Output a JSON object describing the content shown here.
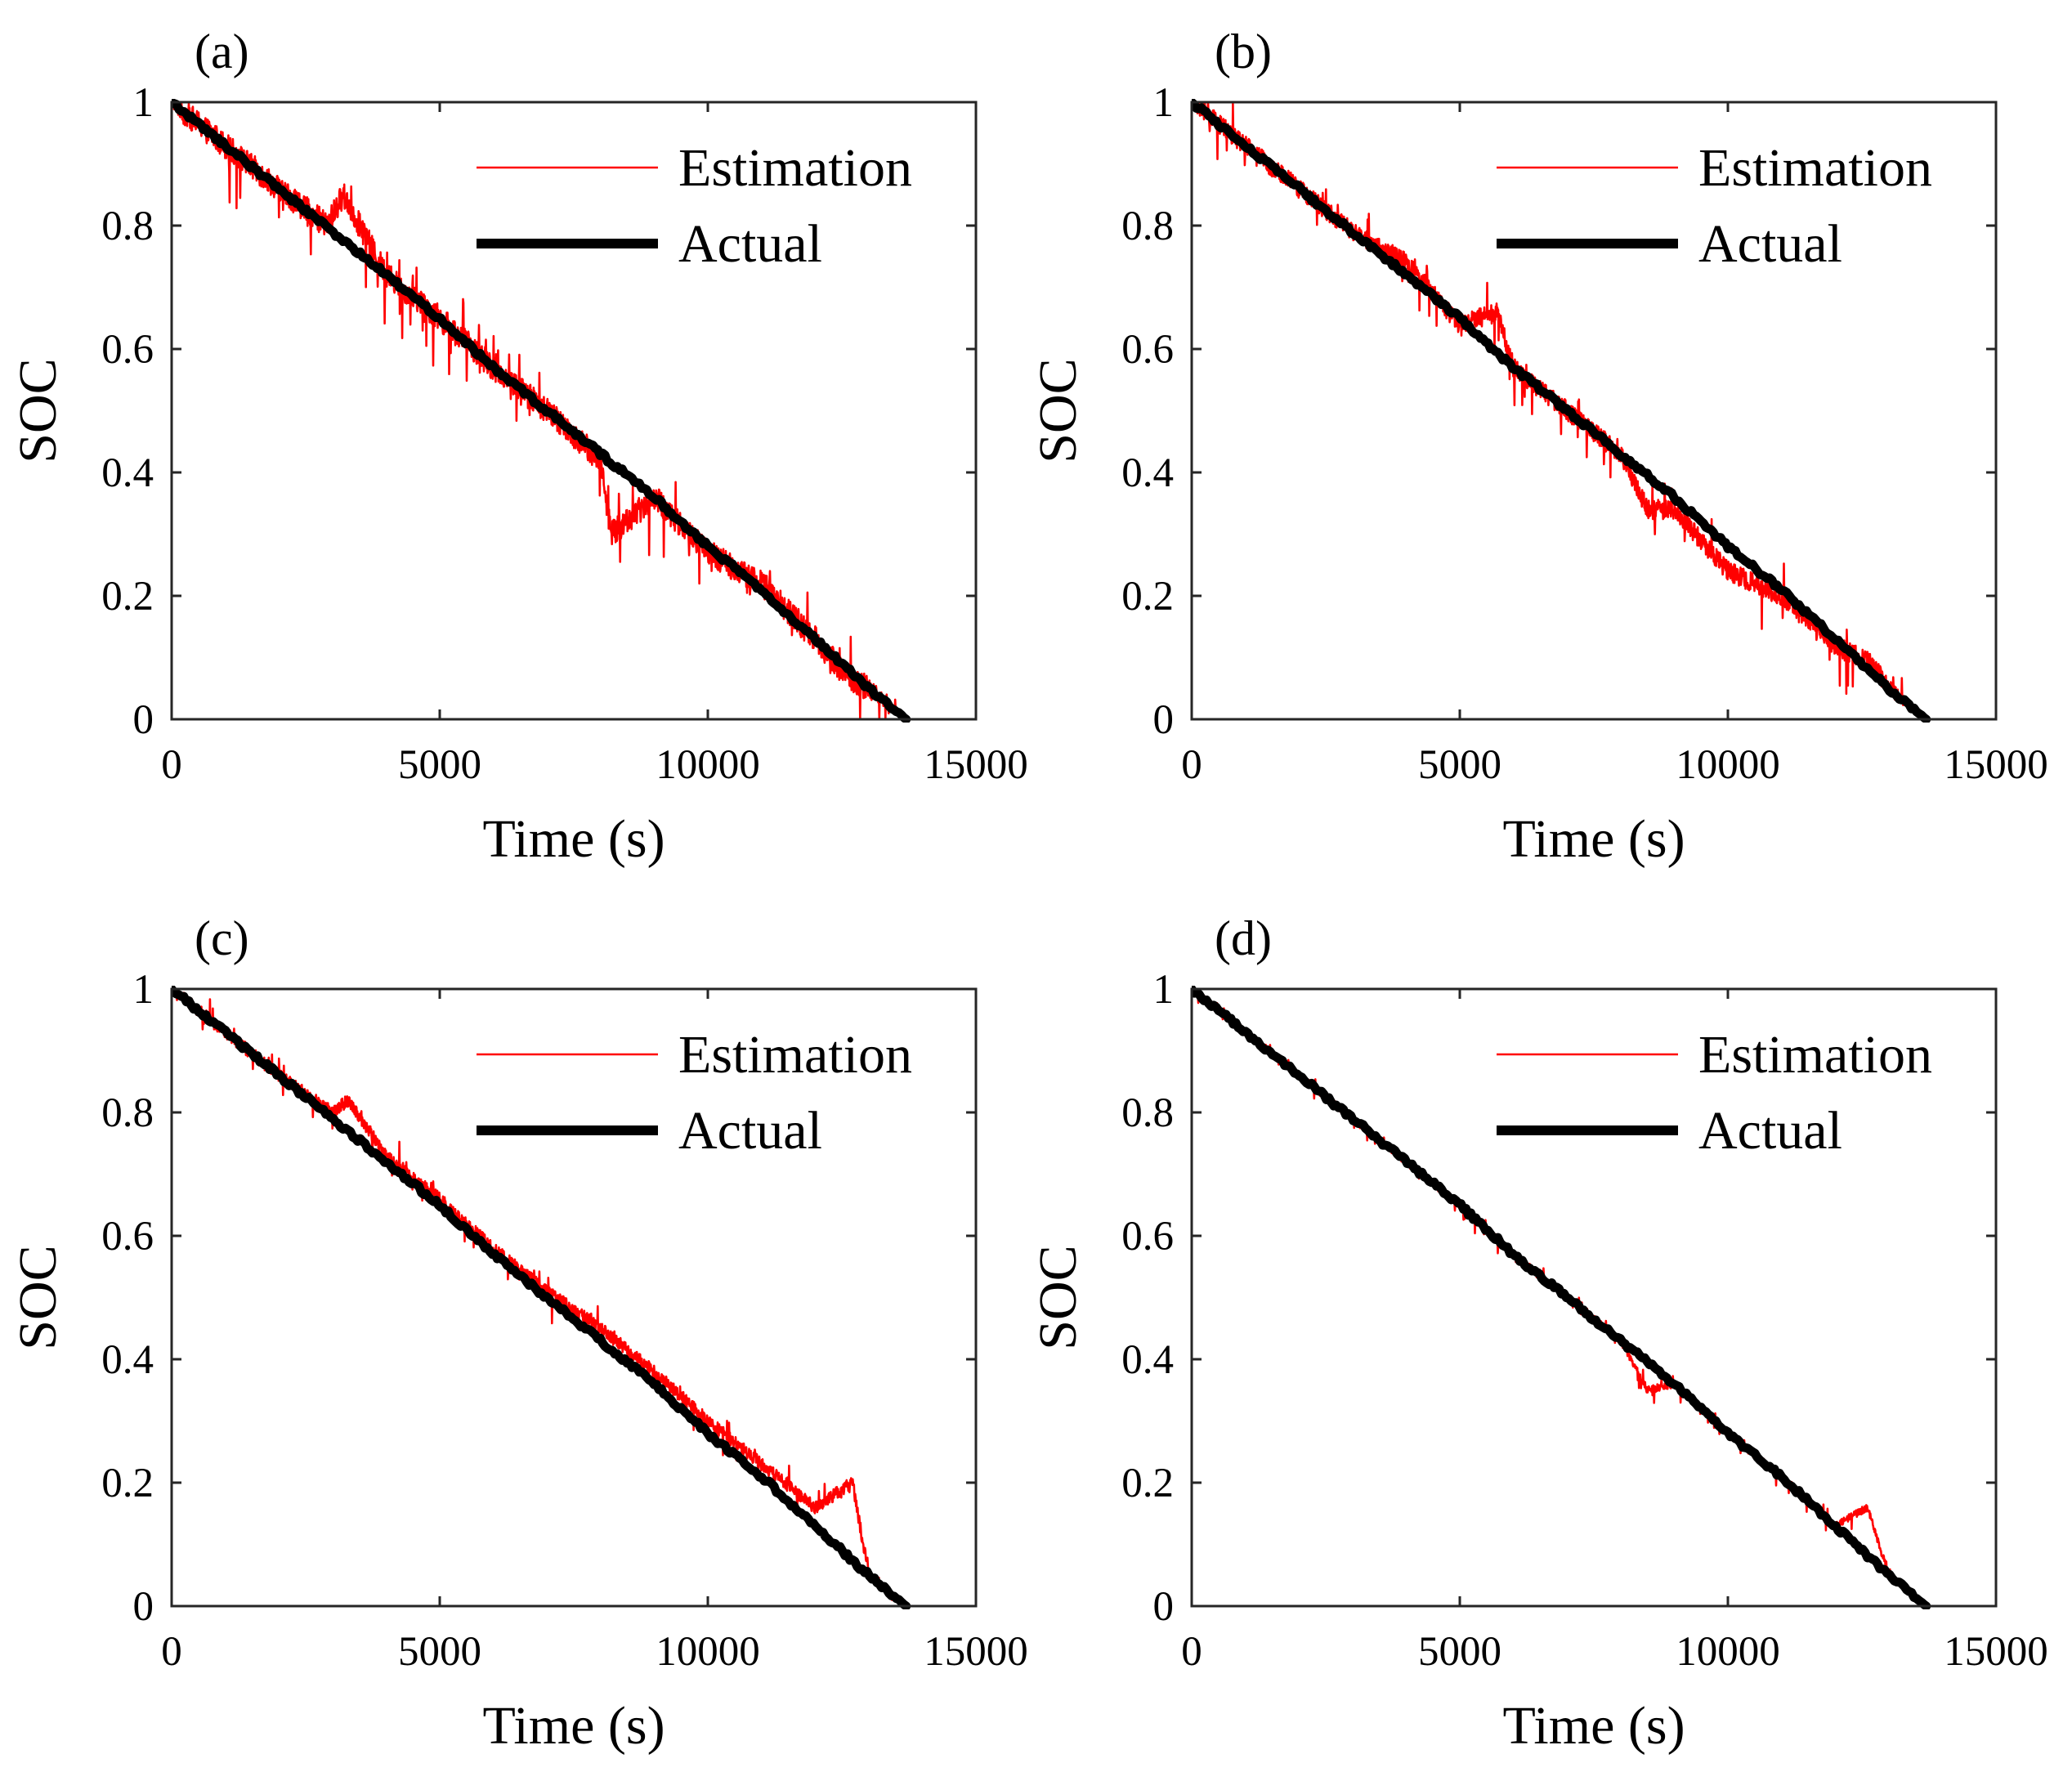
{
  "figure": {
    "colors": {
      "estimation": "#ff0000",
      "actual": "#000000",
      "axis": "#262626",
      "background": "#ffffff"
    }
  },
  "chart_data": [
    {
      "type": "line",
      "panel_label": "(a)",
      "xlabel": "Time (s)",
      "ylabel": "SOC",
      "xlim": [
        0,
        15000
      ],
      "ylim": [
        0,
        1
      ],
      "xticks": [
        0,
        5000,
        10000,
        15000
      ],
      "yticks": [
        0,
        0.2,
        0.4,
        0.6,
        0.8,
        1
      ],
      "xtick_labels": [
        "0",
        "5000",
        "10000",
        "15000"
      ],
      "ytick_labels": [
        "0",
        "0.2",
        "0.4",
        "0.6",
        "0.8",
        "1"
      ],
      "legend_position": "top-right",
      "grid": false,
      "noise_level": "high",
      "series": [
        {
          "name": "Estimation",
          "color": "#ff0000",
          "line": "thin",
          "x": [
            0,
            1000,
            2000,
            2900,
            3200,
            4000,
            5000,
            6000,
            7000,
            8000,
            8200,
            9000,
            10000,
            11000,
            12000,
            12600,
            13000,
            13700
          ],
          "y": [
            1.0,
            0.93,
            0.86,
            0.8,
            0.85,
            0.72,
            0.65,
            0.57,
            0.5,
            0.42,
            0.3,
            0.36,
            0.27,
            0.22,
            0.13,
            0.07,
            0.05,
            0.0
          ]
        },
        {
          "name": "Actual",
          "color": "#000000",
          "line": "thick",
          "x": [
            0,
            1000,
            2000,
            3000,
            4000,
            5000,
            6000,
            7000,
            8000,
            9000,
            10000,
            11000,
            12000,
            13000,
            13700
          ],
          "y": [
            1.0,
            0.93,
            0.86,
            0.79,
            0.72,
            0.65,
            0.57,
            0.5,
            0.43,
            0.36,
            0.28,
            0.21,
            0.13,
            0.05,
            0.0
          ]
        }
      ]
    },
    {
      "type": "line",
      "panel_label": "(b)",
      "xlabel": "Time (s)",
      "ylabel": "SOC",
      "xlim": [
        0,
        15000
      ],
      "ylim": [
        0,
        1
      ],
      "xticks": [
        0,
        5000,
        10000,
        15000
      ],
      "yticks": [
        0,
        0.2,
        0.4,
        0.6,
        0.8,
        1
      ],
      "xtick_labels": [
        "0",
        "5000",
        "10000",
        "15000"
      ],
      "ytick_labels": [
        "0",
        "0.2",
        "0.4",
        "0.6",
        "0.8",
        "1"
      ],
      "legend_position": "top-right",
      "grid": false,
      "noise_level": "medium",
      "series": [
        {
          "name": "Estimation",
          "color": "#ff0000",
          "line": "thin",
          "x": [
            0,
            1000,
            2000,
            3000,
            4000,
            5000,
            5700,
            6000,
            7000,
            8000,
            8500,
            9000,
            10000,
            11000,
            12000,
            12700,
            13000,
            13700
          ],
          "y": [
            1.0,
            0.93,
            0.86,
            0.79,
            0.74,
            0.64,
            0.66,
            0.57,
            0.5,
            0.43,
            0.34,
            0.34,
            0.24,
            0.2,
            0.12,
            0.09,
            0.05,
            0.0
          ]
        },
        {
          "name": "Actual",
          "color": "#000000",
          "line": "thick",
          "x": [
            0,
            1000,
            2000,
            3000,
            4000,
            5000,
            6000,
            7000,
            8000,
            9000,
            10000,
            11000,
            12000,
            13000,
            13700
          ],
          "y": [
            1.0,
            0.93,
            0.86,
            0.79,
            0.72,
            0.65,
            0.57,
            0.5,
            0.43,
            0.36,
            0.28,
            0.21,
            0.13,
            0.05,
            0.0
          ]
        }
      ]
    },
    {
      "type": "line",
      "panel_label": "(c)",
      "xlabel": "Time (s)",
      "ylabel": "SOC",
      "xlim": [
        0,
        15000
      ],
      "ylim": [
        0,
        1
      ],
      "xticks": [
        0,
        5000,
        10000,
        15000
      ],
      "yticks": [
        0,
        0.2,
        0.4,
        0.6,
        0.8,
        1
      ],
      "xtick_labels": [
        "0",
        "5000",
        "10000",
        "15000"
      ],
      "ytick_labels": [
        "0",
        "0.2",
        "0.4",
        "0.6",
        "0.8",
        "1"
      ],
      "legend_position": "top-right",
      "grid": false,
      "noise_level": "low",
      "series": [
        {
          "name": "Estimation",
          "color": "#ff0000",
          "line": "thin",
          "x": [
            0,
            1000,
            2000,
            3000,
            3300,
            4000,
            5000,
            6000,
            7000,
            8000,
            9000,
            10000,
            11000,
            12000,
            12700,
            13000,
            13700
          ],
          "y": [
            1.0,
            0.93,
            0.86,
            0.8,
            0.82,
            0.73,
            0.66,
            0.58,
            0.51,
            0.45,
            0.38,
            0.3,
            0.23,
            0.16,
            0.2,
            0.05,
            0.0
          ]
        },
        {
          "name": "Actual",
          "color": "#000000",
          "line": "thick",
          "x": [
            0,
            1000,
            2000,
            3000,
            4000,
            5000,
            6000,
            7000,
            8000,
            9000,
            10000,
            11000,
            12000,
            13000,
            13700
          ],
          "y": [
            1.0,
            0.93,
            0.86,
            0.79,
            0.72,
            0.65,
            0.57,
            0.5,
            0.43,
            0.36,
            0.28,
            0.21,
            0.13,
            0.05,
            0.0
          ]
        }
      ]
    },
    {
      "type": "line",
      "panel_label": "(d)",
      "xlabel": "Time (s)",
      "ylabel": "SOC",
      "xlim": [
        0,
        15000
      ],
      "ylim": [
        0,
        1
      ],
      "xticks": [
        0,
        5000,
        10000,
        15000
      ],
      "yticks": [
        0,
        0.2,
        0.4,
        0.6,
        0.8,
        1
      ],
      "xtick_labels": [
        "0",
        "5000",
        "10000",
        "15000"
      ],
      "ytick_labels": [
        "0",
        "0.2",
        "0.4",
        "0.6",
        "0.8",
        "1"
      ],
      "legend_position": "top-right",
      "grid": false,
      "noise_level": "very low",
      "series": [
        {
          "name": "Estimation",
          "color": "#ff0000",
          "line": "thin",
          "x": [
            0,
            1000,
            2000,
            3000,
            4000,
            5000,
            6000,
            7000,
            8000,
            8500,
            9000,
            10000,
            11000,
            12000,
            12600,
            13000,
            13700
          ],
          "y": [
            1.0,
            0.93,
            0.86,
            0.79,
            0.72,
            0.65,
            0.57,
            0.5,
            0.43,
            0.35,
            0.36,
            0.28,
            0.21,
            0.13,
            0.16,
            0.05,
            0.0
          ]
        },
        {
          "name": "Actual",
          "color": "#000000",
          "line": "thick",
          "x": [
            0,
            1000,
            2000,
            3000,
            4000,
            5000,
            6000,
            7000,
            8000,
            9000,
            10000,
            11000,
            12000,
            13000,
            13700
          ],
          "y": [
            1.0,
            0.93,
            0.86,
            0.79,
            0.72,
            0.65,
            0.57,
            0.5,
            0.43,
            0.36,
            0.28,
            0.21,
            0.13,
            0.05,
            0.0
          ]
        }
      ]
    }
  ]
}
